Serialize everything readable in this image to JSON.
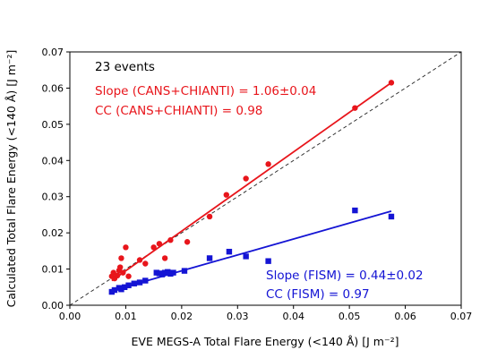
{
  "chart_data": {
    "type": "scatter",
    "title": "",
    "xlabel": "EVE MEGS-A Total Flare Energy (<140 Å) [J m⁻²]",
    "ylabel": "Calculated Total Flare Energy (<140 Å) [J m⁻²]",
    "xlim": [
      0.0,
      0.07
    ],
    "ylim": [
      0.0,
      0.07
    ],
    "xticks": [
      "0.00",
      "0.01",
      "0.02",
      "0.03",
      "0.04",
      "0.05",
      "0.06",
      "0.07"
    ],
    "yticks": [
      "0.00",
      "0.01",
      "0.02",
      "0.03",
      "0.04",
      "0.05",
      "0.06",
      "0.07"
    ],
    "grid": false,
    "annotations": {
      "events": "23 events",
      "cans_slope": "Slope (CANS+CHIANTI) = 1.06±0.04",
      "cans_cc": "CC (CANS+CHIANTI) = 0.98",
      "fism_slope": "Slope (FISM) = 0.44±0.02",
      "fism_cc": "CC (FISM) = 0.97"
    },
    "reference_line": {
      "style": "dashed",
      "color": "#222222",
      "from": [
        0.0,
        0.0
      ],
      "to": [
        0.07,
        0.07
      ]
    },
    "series": [
      {
        "marker": "circle",
        "color": "#e8151b",
        "fit": {
          "from": [
            0.0075,
            0.0068
          ],
          "to": [
            0.0575,
            0.0615
          ]
        },
        "points": [
          [
            0.0075,
            0.008
          ],
          [
            0.0078,
            0.009
          ],
          [
            0.008,
            0.0074
          ],
          [
            0.0085,
            0.0082
          ],
          [
            0.0088,
            0.0096
          ],
          [
            0.009,
            0.0105
          ],
          [
            0.0092,
            0.013
          ],
          [
            0.0095,
            0.009
          ],
          [
            0.01,
            0.016
          ],
          [
            0.0105,
            0.008
          ],
          [
            0.0125,
            0.0125
          ],
          [
            0.0135,
            0.0115
          ],
          [
            0.015,
            0.016
          ],
          [
            0.016,
            0.017
          ],
          [
            0.017,
            0.013
          ],
          [
            0.018,
            0.018
          ],
          [
            0.021,
            0.0175
          ],
          [
            0.025,
            0.0245
          ],
          [
            0.028,
            0.0305
          ],
          [
            0.0315,
            0.035
          ],
          [
            0.0355,
            0.039
          ],
          [
            0.051,
            0.0545
          ],
          [
            0.0575,
            0.0615
          ]
        ]
      },
      {
        "marker": "square",
        "color": "#1414d4",
        "fit": {
          "from": [
            0.0075,
            0.004
          ],
          "to": [
            0.0575,
            0.026
          ]
        },
        "points": [
          [
            0.0075,
            0.0037
          ],
          [
            0.008,
            0.0042
          ],
          [
            0.0088,
            0.0048
          ],
          [
            0.0092,
            0.0044
          ],
          [
            0.0098,
            0.005
          ],
          [
            0.0105,
            0.0055
          ],
          [
            0.0115,
            0.006
          ],
          [
            0.0125,
            0.0063
          ],
          [
            0.0135,
            0.0068
          ],
          [
            0.0155,
            0.009
          ],
          [
            0.016,
            0.0088
          ],
          [
            0.0165,
            0.0085
          ],
          [
            0.017,
            0.009
          ],
          [
            0.0175,
            0.0092
          ],
          [
            0.018,
            0.0087
          ],
          [
            0.0185,
            0.009
          ],
          [
            0.0205,
            0.0095
          ],
          [
            0.025,
            0.013
          ],
          [
            0.0285,
            0.0148
          ],
          [
            0.0315,
            0.0135
          ],
          [
            0.0355,
            0.0122
          ],
          [
            0.051,
            0.0262
          ],
          [
            0.0575,
            0.0245
          ]
        ]
      }
    ]
  }
}
